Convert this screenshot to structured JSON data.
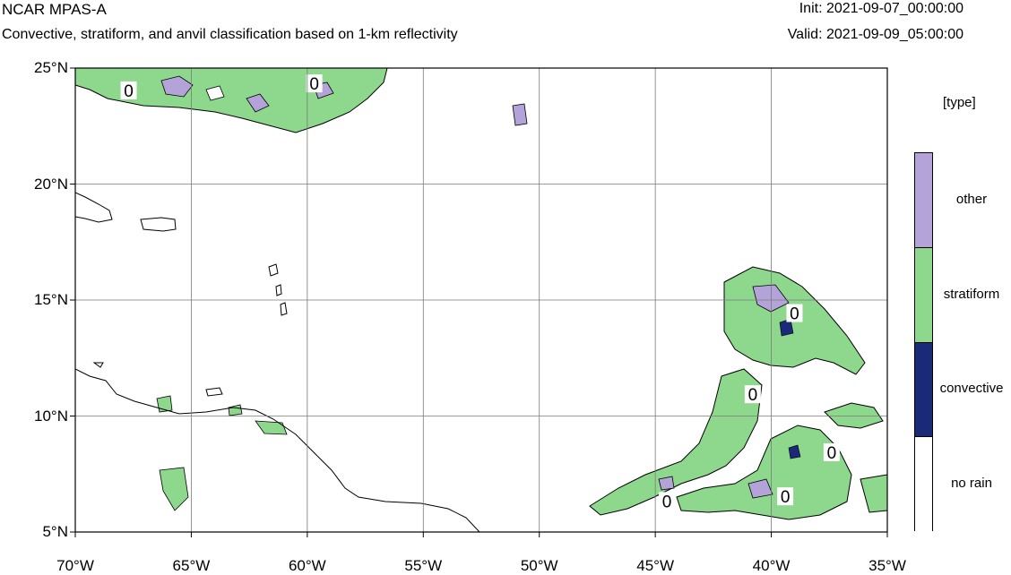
{
  "header": {
    "title": "NCAR MPAS-A",
    "subtitle": "Convective, stratiform, and anvil classification based on 1-km reflectivity",
    "init": "Init: 2021-09-07_00:00:00",
    "valid": "Valid: 2021-09-09_05:00:00"
  },
  "map": {
    "lon_range": [
      -70,
      -35
    ],
    "lat_range": [
      5,
      25
    ],
    "grid": true,
    "lat_ticks": [
      {
        "value": 25,
        "label": "25°N"
      },
      {
        "value": 20,
        "label": "20°N"
      },
      {
        "value": 15,
        "label": "15°N"
      },
      {
        "value": 10,
        "label": "10°N"
      },
      {
        "value": 5,
        "label": "5°N"
      }
    ],
    "lon_ticks": [
      {
        "value": -70,
        "label": "70°W"
      },
      {
        "value": -65,
        "label": "65°W"
      },
      {
        "value": -60,
        "label": "60°W"
      },
      {
        "value": -55,
        "label": "55°W"
      },
      {
        "value": -50,
        "label": "50°W"
      },
      {
        "value": -45,
        "label": "45°W"
      },
      {
        "value": -40,
        "label": "40°W"
      },
      {
        "value": -35,
        "label": "35°W"
      }
    ],
    "contour_labels": [
      {
        "text": "0",
        "lon": -67.7,
        "lat": 24.0
      },
      {
        "text": "0",
        "lon": -59.7,
        "lat": 24.3
      },
      {
        "text": "0",
        "lon": -39.0,
        "lat": 14.4
      },
      {
        "text": "0",
        "lon": -40.8,
        "lat": 10.9
      },
      {
        "text": "0",
        "lon": -37.4,
        "lat": 8.4
      },
      {
        "text": "0",
        "lon": -44.5,
        "lat": 6.3
      },
      {
        "text": "0",
        "lon": -39.4,
        "lat": 6.5
      }
    ]
  },
  "legend": {
    "unit": "[type]",
    "categories": [
      {
        "label": "other",
        "color": "#b3a3d9"
      },
      {
        "label": "stratiform",
        "color": "#8ed88e"
      },
      {
        "label": "convective",
        "color": "#1a2a78"
      },
      {
        "label": "no rain",
        "color": "#ffffff"
      }
    ]
  }
}
